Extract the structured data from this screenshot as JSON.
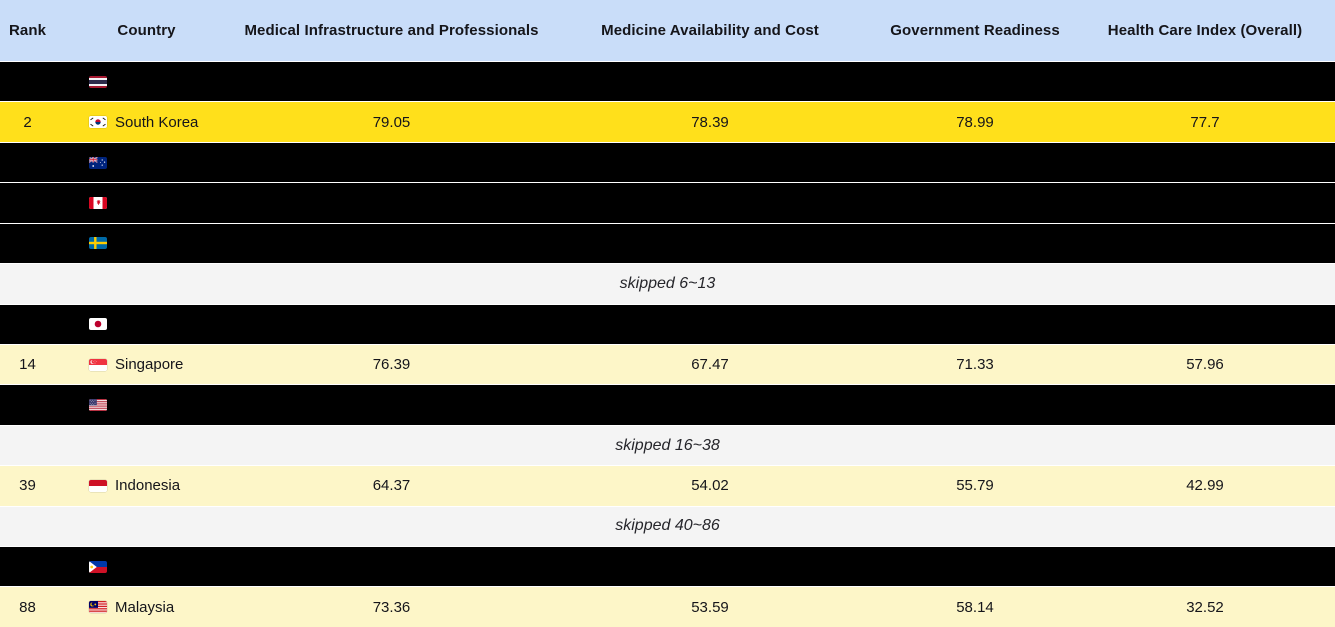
{
  "table": {
    "columns": [
      {
        "id": "rank",
        "label": "Rank"
      },
      {
        "id": "country",
        "label": "Country"
      },
      {
        "id": "medical_infrastructure",
        "label": "Medical Infrastructure and Professionals"
      },
      {
        "id": "medicine_availability",
        "label": "Medicine Availability and Cost"
      },
      {
        "id": "government_readiness",
        "label": "Government Readiness"
      },
      {
        "id": "health_care_index",
        "label": "Health Care Index (Overall)"
      }
    ],
    "colors": {
      "header_bg": "#c9ddf9",
      "hidden_row_bg": "#000000",
      "highlight_row_bg": "#ffe01b",
      "revealed_row_bg": "#fdf6c8",
      "skipped_row_bg": "#f4f4f4",
      "row_separator": "#ffffff",
      "text": "#15151a"
    },
    "rows": [
      {
        "type": "hidden",
        "flag_icon": "flag-thailand",
        "flag_emoji": "🇹🇭"
      },
      {
        "type": "highlight",
        "rank": "2",
        "country": "South Korea",
        "flag_icon": "flag-south-korea",
        "flag_emoji": "🇰🇷",
        "values": [
          "79.05",
          "78.39",
          "78.99",
          "77.7"
        ]
      },
      {
        "type": "hidden",
        "flag_icon": "flag-australia",
        "flag_emoji": "🇦🇺"
      },
      {
        "type": "hidden",
        "flag_icon": "flag-canada",
        "flag_emoji": "🇨🇦"
      },
      {
        "type": "hidden",
        "flag_icon": "flag-sweden",
        "flag_emoji": "🇸🇪"
      },
      {
        "type": "skipped",
        "label": "skipped 6~13"
      },
      {
        "type": "hidden",
        "flag_icon": "flag-japan",
        "flag_emoji": "🇯🇵"
      },
      {
        "type": "revealed",
        "rank": "14",
        "country": "Singapore",
        "flag_icon": "flag-singapore",
        "flag_emoji": "🇸🇬",
        "values": [
          "76.39",
          "67.47",
          "71.33",
          "57.96"
        ]
      },
      {
        "type": "hidden",
        "flag_icon": "flag-united-states",
        "flag_emoji": "🇺🇸"
      },
      {
        "type": "skipped",
        "label": "skipped 16~38"
      },
      {
        "type": "revealed",
        "rank": "39",
        "country": "Indonesia",
        "flag_icon": "flag-indonesia",
        "flag_emoji": "🇮🇩",
        "values": [
          "64.37",
          "54.02",
          "55.79",
          "42.99"
        ]
      },
      {
        "type": "skipped",
        "label": "skipped 40~86"
      },
      {
        "type": "hidden",
        "flag_icon": "flag-philippines",
        "flag_emoji": "🇵🇭"
      },
      {
        "type": "revealed",
        "rank": "88",
        "country": "Malaysia",
        "flag_icon": "flag-malaysia",
        "flag_emoji": "🇲🇾",
        "values": [
          "73.36",
          "53.59",
          "58.14",
          "32.52"
        ]
      }
    ]
  },
  "chart_data": {
    "type": "table",
    "columns": [
      "Rank",
      "Country",
      "Medical Infrastructure and Professionals",
      "Medicine Availability and Cost",
      "Government Readiness",
      "Health Care Index (Overall)"
    ],
    "visible_rows": [
      [
        2,
        "South Korea",
        79.05,
        78.39,
        78.99,
        77.7
      ],
      [
        14,
        "Singapore",
        76.39,
        67.47,
        71.33,
        57.96
      ],
      [
        39,
        "Indonesia",
        64.37,
        54.02,
        55.79,
        42.99
      ],
      [
        88,
        "Malaysia",
        73.36,
        53.59,
        58.14,
        32.52
      ]
    ],
    "hidden_rows_flags_in_order": [
      "Thailand",
      "Australia",
      "Canada",
      "Sweden",
      "Japan",
      "United States",
      "Philippines"
    ],
    "skipped_ranges": [
      "6~13",
      "16~38",
      "40~86"
    ],
    "highlighted_row": "South Korea"
  }
}
